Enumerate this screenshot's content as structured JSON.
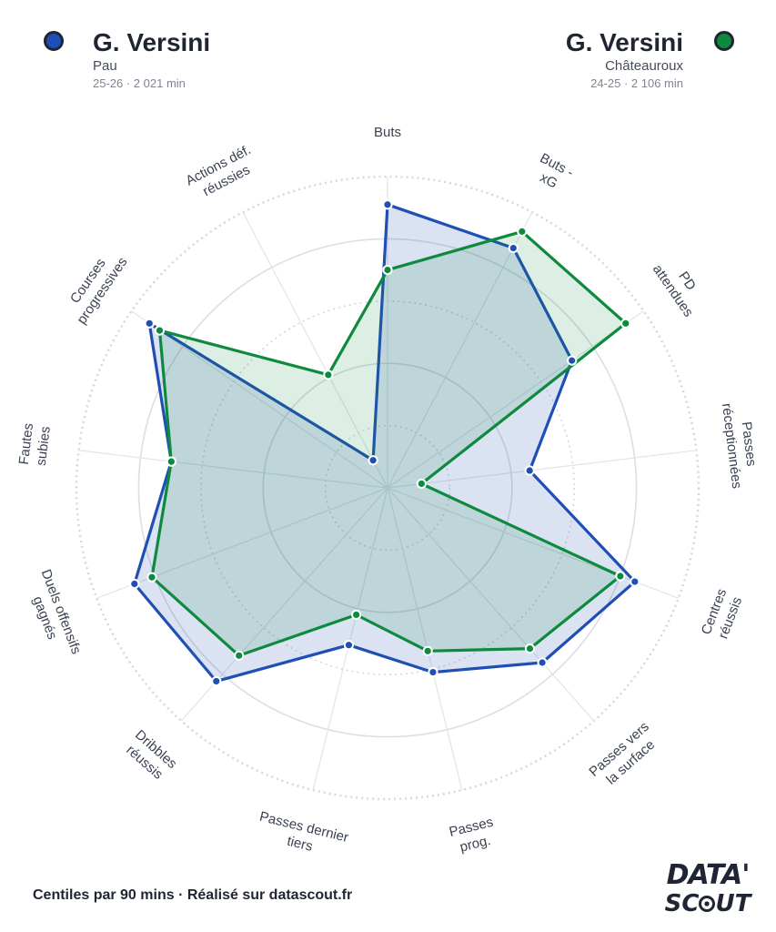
{
  "player1": {
    "name": "G. Versini",
    "club": "Pau",
    "meta": "25-26 · 2 021 min",
    "color": "#1f4fb5",
    "fill": "rgba(31,79,181,0.16)"
  },
  "player2": {
    "name": "G. Versini",
    "club": "Châteauroux",
    "meta": "24-25 · 2 106 min",
    "color": "#0e8a3e",
    "fill": "rgba(14,138,62,0.14)"
  },
  "footer": "Centiles par 90 mins · Réalisé sur datascout.fr",
  "brand": {
    "line1": "DATA'",
    "line2_a": "SC",
    "line2_b": "UT"
  },
  "chart_data": {
    "type": "radar",
    "rlim": [
      0,
      100
    ],
    "grid_levels": [
      20,
      40,
      60,
      80,
      100
    ],
    "axes": [
      [
        "Buts"
      ],
      [
        "Buts -",
        "xG"
      ],
      [
        "PD",
        "attendues"
      ],
      [
        "Passes",
        "réceptionnées"
      ],
      [
        "Centres",
        "réussis"
      ],
      [
        "Passes vers",
        "la surface"
      ],
      [
        "Passes",
        "prog."
      ],
      [
        "Passes dernier",
        "tiers"
      ],
      [
        "Dribbles",
        "réussis"
      ],
      [
        "Duels offensifs",
        "gagnés"
      ],
      [
        "Fautes",
        "subies"
      ],
      [
        "Courses",
        "progressives"
      ],
      [
        "Actions déf.",
        "réussies"
      ]
    ],
    "series": [
      {
        "name": "G. Versini",
        "values": [
          91,
          87,
          72,
          46,
          85,
          75,
          61,
          52,
          83,
          87,
          70,
          93,
          10
        ]
      },
      {
        "name": "G. Versini",
        "values": [
          70,
          93,
          93,
          11,
          80,
          69,
          54,
          42,
          72,
          81,
          70,
          89,
          41
        ]
      }
    ]
  }
}
